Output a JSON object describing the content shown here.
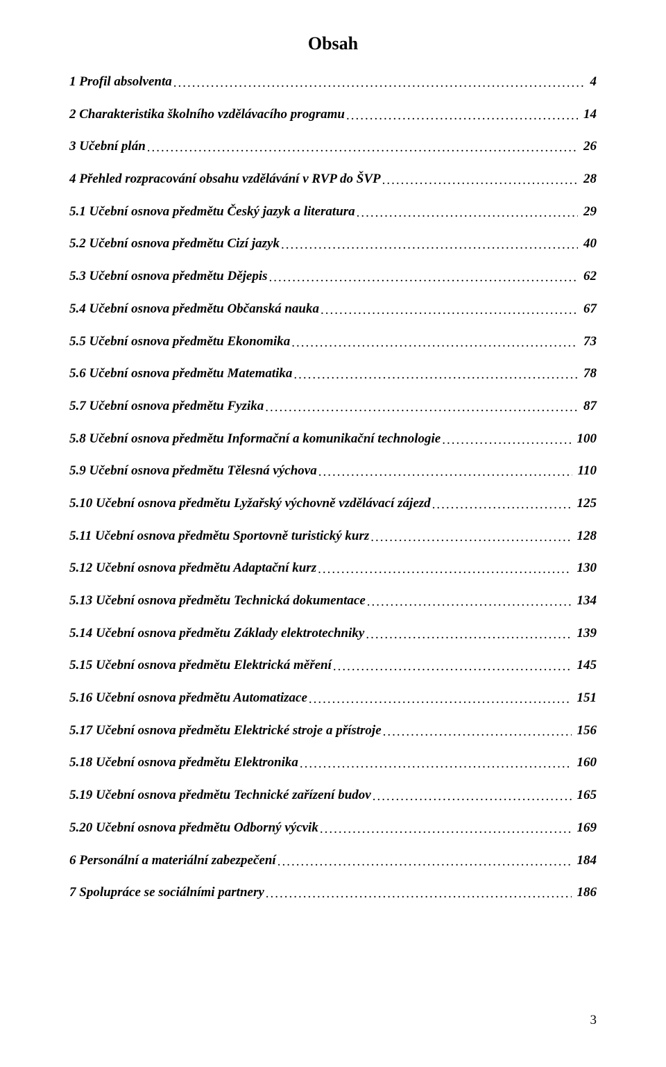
{
  "title": "Obsah",
  "page_number": "3",
  "colors": {
    "text": "#000000",
    "background": "#ffffff"
  },
  "typography": {
    "title_fontsize_pt": 20,
    "entry_fontsize_pt": 14,
    "font_family": "Times New Roman",
    "entry_style": "bold-italic",
    "leader_char": "."
  },
  "toc": [
    {
      "label": "1 Profil absolventa",
      "page": "4"
    },
    {
      "label": "2 Charakteristika školního vzdělávacího programu",
      "page": "14"
    },
    {
      "label": "3 Učební plán",
      "page": "26"
    },
    {
      "label": "4 Přehled rozpracování obsahu vzdělávání v RVP do ŠVP",
      "page": "28"
    },
    {
      "label": "5.1 Učební osnova předmětu Český jazyk a literatura",
      "page": "29"
    },
    {
      "label": "5.2 Učební osnova předmětu Cizí jazyk",
      "page": "40"
    },
    {
      "label": "5.3 Učební osnova předmětu Dějepis",
      "page": "62"
    },
    {
      "label": "5.4 Učební osnova předmětu Občanská nauka",
      "page": "67"
    },
    {
      "label": "5.5 Učební osnova předmětu Ekonomika",
      "page": "73"
    },
    {
      "label": "5.6 Učební osnova předmětu Matematika",
      "page": "78"
    },
    {
      "label": "5.7 Učební osnova předmětu Fyzika",
      "page": "87"
    },
    {
      "label": "5.8 Učební osnova předmětu Informační a komunikační technologie",
      "page": "100"
    },
    {
      "label": "5.9 Učební osnova předmětu Tělesná výchova",
      "page": "110"
    },
    {
      "label": "5.10 Učební osnova předmětu Lyžařský výchovně vzdělávací zájezd",
      "page": "125"
    },
    {
      "label": "5.11 Učební osnova předmětu Sportovně turistický kurz",
      "page": "128"
    },
    {
      "label": "5.12 Učební osnova předmětu Adaptační kurz",
      "page": "130"
    },
    {
      "label": "5.13 Učební osnova předmětu Technická dokumentace",
      "page": "134"
    },
    {
      "label": "5.14 Učební osnova předmětu Základy elektrotechniky",
      "page": "139"
    },
    {
      "label": "5.15 Učební osnova předmětu Elektrická měření",
      "page": "145"
    },
    {
      "label": "5.16 Učební osnova předmětu Automatizace",
      "page": "151"
    },
    {
      "label": "5.17 Učební osnova předmětu Elektrické stroje a přístroje",
      "page": "156"
    },
    {
      "label": "5.18 Učební osnova předmětu Elektronika",
      "page": "160"
    },
    {
      "label": "5.19 Učební osnova předmětu Technické zařízení budov",
      "page": "165"
    },
    {
      "label": "5.20 Učební osnova předmětu Odborný výcvik",
      "page": "169"
    },
    {
      "label": "6 Personální a materiální zabezpečení",
      "page": "184"
    },
    {
      "label": "7 Spolupráce se sociálními partnery",
      "page": "186"
    }
  ]
}
